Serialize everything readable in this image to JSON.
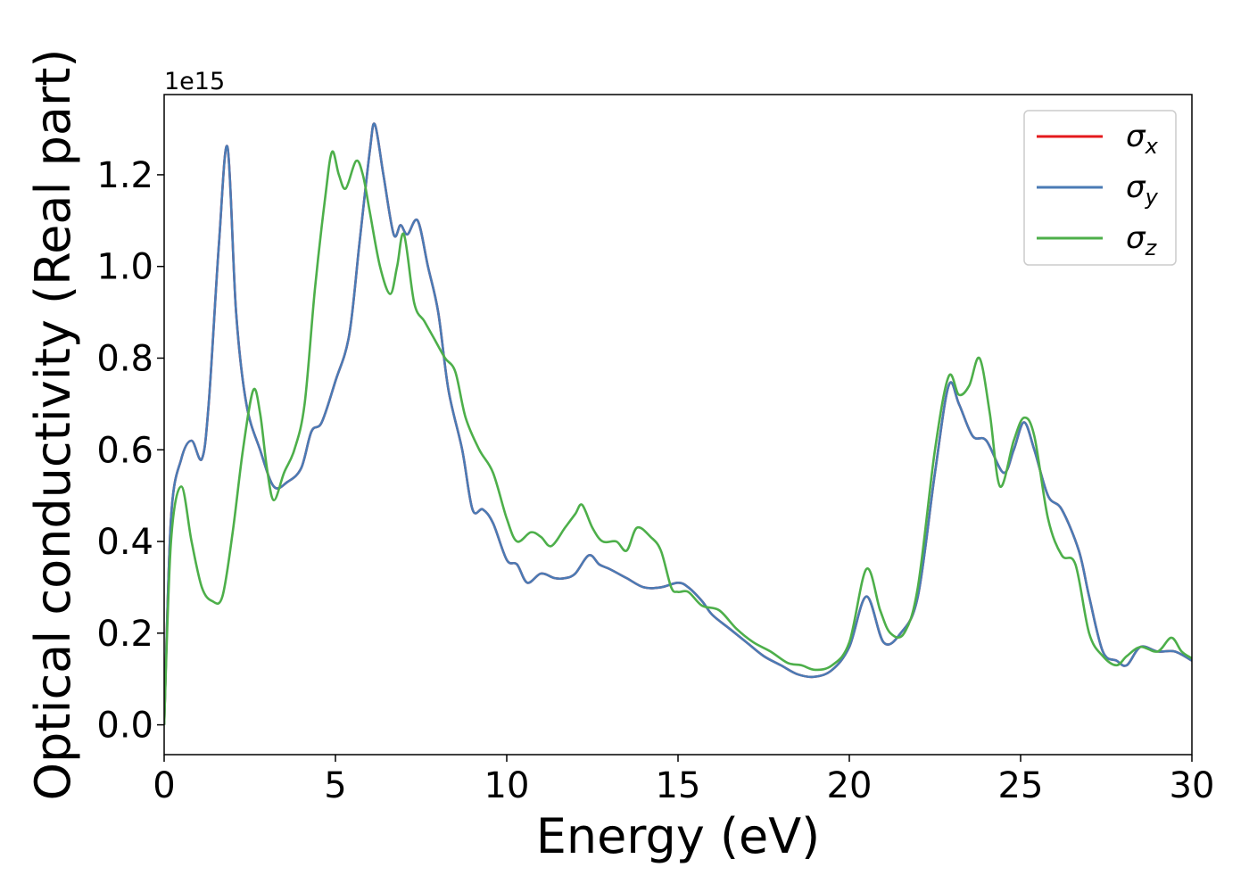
{
  "chart_data": {
    "type": "line",
    "xlabel": "Energy (eV)",
    "ylabel": "Optical conductivity (Real part)",
    "y_offset_text": "1e15",
    "y_multiplier": 1000000000000000.0,
    "xlim": [
      0,
      30
    ],
    "ylim": [
      -0.065,
      1.375
    ],
    "xticks": [
      0,
      5,
      10,
      15,
      20,
      25,
      30
    ],
    "yticks": [
      0.0,
      0.2,
      0.4,
      0.6,
      0.8,
      1.0,
      1.2
    ],
    "ytick_labels": [
      "0.0",
      "0.2",
      "0.4",
      "0.6",
      "0.8",
      "1.0",
      "1.2"
    ],
    "xtick_labels": [
      "0",
      "5",
      "10",
      "15",
      "20",
      "25",
      "30"
    ],
    "grid": false,
    "legend_position": "top-right",
    "series": [
      {
        "name": "σx",
        "legend_main": "σ",
        "legend_sub": "x",
        "color": "#e41a1c",
        "x": [
          0,
          0.2,
          0.5,
          0.8,
          1.1,
          1.3,
          1.6,
          1.85,
          2.1,
          2.4,
          2.8,
          3.2,
          3.6,
          4.0,
          4.3,
          4.6,
          5.0,
          5.4,
          5.7,
          6.0,
          6.15,
          6.4,
          6.7,
          6.9,
          7.1,
          7.4,
          7.7,
          8.0,
          8.3,
          8.7,
          9.0,
          9.3,
          9.6,
          10.0,
          10.3,
          10.6,
          11.0,
          11.4,
          11.7,
          12.0,
          12.4,
          12.7,
          13.0,
          13.5,
          14.0,
          14.5,
          15.0,
          15.3,
          15.7,
          16.0,
          16.5,
          17.0,
          17.5,
          18.0,
          18.5,
          19.0,
          19.5,
          20.0,
          20.5,
          21.0,
          21.5,
          22.0,
          22.5,
          22.9,
          23.2,
          23.6,
          24.0,
          24.5,
          24.8,
          25.1,
          25.4,
          25.8,
          26.2,
          26.7,
          27.0,
          27.4,
          27.8,
          28.1,
          28.5,
          29.0,
          29.5,
          30.0
        ],
        "y": [
          0.0,
          0.45,
          0.58,
          0.62,
          0.58,
          0.7,
          1.05,
          1.26,
          0.9,
          0.7,
          0.6,
          0.52,
          0.53,
          0.56,
          0.64,
          0.66,
          0.75,
          0.85,
          1.05,
          1.25,
          1.31,
          1.2,
          1.07,
          1.09,
          1.07,
          1.1,
          1.0,
          0.9,
          0.73,
          0.6,
          0.47,
          0.47,
          0.44,
          0.36,
          0.35,
          0.31,
          0.33,
          0.32,
          0.32,
          0.33,
          0.37,
          0.35,
          0.34,
          0.32,
          0.3,
          0.3,
          0.31,
          0.3,
          0.27,
          0.24,
          0.21,
          0.18,
          0.15,
          0.13,
          0.11,
          0.105,
          0.12,
          0.17,
          0.28,
          0.18,
          0.2,
          0.28,
          0.55,
          0.74,
          0.7,
          0.63,
          0.62,
          0.55,
          0.6,
          0.66,
          0.6,
          0.5,
          0.47,
          0.38,
          0.28,
          0.16,
          0.14,
          0.13,
          0.17,
          0.16,
          0.16,
          0.14
        ]
      },
      {
        "name": "σy",
        "legend_main": "σ",
        "legend_sub": "y",
        "color": "#4a7bb5",
        "x": [
          0,
          0.2,
          0.5,
          0.8,
          1.1,
          1.3,
          1.6,
          1.85,
          2.1,
          2.4,
          2.8,
          3.2,
          3.6,
          4.0,
          4.3,
          4.6,
          5.0,
          5.4,
          5.7,
          6.0,
          6.15,
          6.4,
          6.7,
          6.9,
          7.1,
          7.4,
          7.7,
          8.0,
          8.3,
          8.7,
          9.0,
          9.3,
          9.6,
          10.0,
          10.3,
          10.6,
          11.0,
          11.4,
          11.7,
          12.0,
          12.4,
          12.7,
          13.0,
          13.5,
          14.0,
          14.5,
          15.0,
          15.3,
          15.7,
          16.0,
          16.5,
          17.0,
          17.5,
          18.0,
          18.5,
          19.0,
          19.5,
          20.0,
          20.5,
          21.0,
          21.5,
          22.0,
          22.5,
          22.9,
          23.2,
          23.6,
          24.0,
          24.5,
          24.8,
          25.1,
          25.4,
          25.8,
          26.2,
          26.7,
          27.0,
          27.4,
          27.8,
          28.1,
          28.5,
          29.0,
          29.5,
          30.0
        ],
        "y": [
          0.0,
          0.45,
          0.58,
          0.62,
          0.58,
          0.7,
          1.05,
          1.26,
          0.9,
          0.7,
          0.6,
          0.52,
          0.53,
          0.56,
          0.64,
          0.66,
          0.75,
          0.85,
          1.05,
          1.25,
          1.31,
          1.2,
          1.07,
          1.09,
          1.07,
          1.1,
          1.0,
          0.9,
          0.73,
          0.6,
          0.47,
          0.47,
          0.44,
          0.36,
          0.35,
          0.31,
          0.33,
          0.32,
          0.32,
          0.33,
          0.37,
          0.35,
          0.34,
          0.32,
          0.3,
          0.3,
          0.31,
          0.3,
          0.27,
          0.24,
          0.21,
          0.18,
          0.15,
          0.13,
          0.11,
          0.105,
          0.12,
          0.17,
          0.28,
          0.18,
          0.2,
          0.28,
          0.55,
          0.74,
          0.7,
          0.63,
          0.62,
          0.55,
          0.6,
          0.66,
          0.6,
          0.5,
          0.47,
          0.38,
          0.28,
          0.16,
          0.14,
          0.13,
          0.17,
          0.16,
          0.16,
          0.14
        ]
      },
      {
        "name": "σz",
        "legend_main": "σ",
        "legend_sub": "z",
        "color": "#4daf4a",
        "x": [
          0,
          0.2,
          0.5,
          0.8,
          1.1,
          1.4,
          1.7,
          2.0,
          2.3,
          2.6,
          2.8,
          3.0,
          3.2,
          3.5,
          3.8,
          4.1,
          4.4,
          4.7,
          4.9,
          5.1,
          5.3,
          5.6,
          5.8,
          6.0,
          6.3,
          6.6,
          6.8,
          7.0,
          7.3,
          7.6,
          7.9,
          8.2,
          8.5,
          8.8,
          9.2,
          9.6,
          10.0,
          10.3,
          10.7,
          11.0,
          11.3,
          11.7,
          12.0,
          12.2,
          12.5,
          12.8,
          13.2,
          13.5,
          13.8,
          14.2,
          14.5,
          14.8,
          15.0,
          15.3,
          15.7,
          16.2,
          16.7,
          17.2,
          17.7,
          18.2,
          18.6,
          19.0,
          19.5,
          20.0,
          20.5,
          20.9,
          21.2,
          21.6,
          22.0,
          22.5,
          22.9,
          23.2,
          23.5,
          23.8,
          24.1,
          24.4,
          24.8,
          25.1,
          25.4,
          25.8,
          26.2,
          26.6,
          27.0,
          27.4,
          27.8,
          28.1,
          28.5,
          29.0,
          29.4,
          29.7,
          30.0
        ],
        "y": [
          0.0,
          0.4,
          0.52,
          0.4,
          0.3,
          0.27,
          0.28,
          0.42,
          0.6,
          0.73,
          0.68,
          0.56,
          0.49,
          0.55,
          0.6,
          0.7,
          0.95,
          1.15,
          1.25,
          1.2,
          1.17,
          1.23,
          1.2,
          1.12,
          1.0,
          0.94,
          1.0,
          1.07,
          0.92,
          0.88,
          0.84,
          0.8,
          0.77,
          0.67,
          0.6,
          0.55,
          0.45,
          0.4,
          0.42,
          0.41,
          0.39,
          0.43,
          0.46,
          0.48,
          0.43,
          0.4,
          0.4,
          0.38,
          0.43,
          0.41,
          0.38,
          0.3,
          0.29,
          0.29,
          0.26,
          0.25,
          0.21,
          0.18,
          0.16,
          0.135,
          0.13,
          0.12,
          0.13,
          0.18,
          0.34,
          0.25,
          0.2,
          0.2,
          0.3,
          0.6,
          0.76,
          0.72,
          0.74,
          0.8,
          0.68,
          0.52,
          0.62,
          0.67,
          0.63,
          0.45,
          0.37,
          0.35,
          0.2,
          0.15,
          0.13,
          0.15,
          0.17,
          0.16,
          0.19,
          0.16,
          0.145
        ]
      }
    ]
  }
}
